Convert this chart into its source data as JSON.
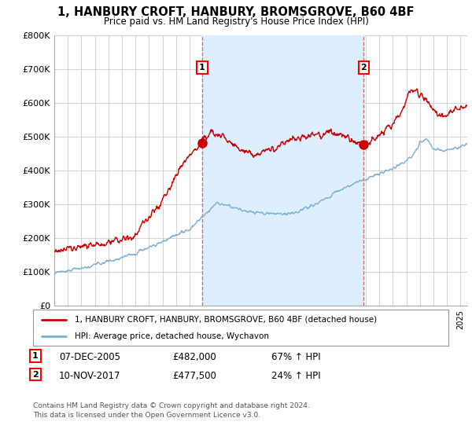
{
  "title": "1, HANBURY CROFT, HANBURY, BROMSGROVE, B60 4BF",
  "subtitle": "Price paid vs. HM Land Registry's House Price Index (HPI)",
  "ylabel_ticks": [
    "£0",
    "£100K",
    "£200K",
    "£300K",
    "£400K",
    "£500K",
    "£600K",
    "£700K",
    "£800K"
  ],
  "ytick_values": [
    0,
    100000,
    200000,
    300000,
    400000,
    500000,
    600000,
    700000,
    800000
  ],
  "ylim": [
    0,
    800000
  ],
  "xlim_start": 1995,
  "xlim_end": 2025.5,
  "sale1": {
    "date": 2005.92,
    "price": 482000,
    "label": "1",
    "pct": "67% ↑ HPI",
    "date_str": "07-DEC-2005"
  },
  "sale2": {
    "date": 2017.86,
    "price": 477500,
    "label": "2",
    "pct": "24% ↑ HPI",
    "date_str": "10-NOV-2017"
  },
  "legend_line1": "1, HANBURY CROFT, HANBURY, BROMSGROVE, B60 4BF (detached house)",
  "legend_line2": "HPI: Average price, detached house, Wychavon",
  "footer": "Contains HM Land Registry data © Crown copyright and database right 2024.\nThis data is licensed under the Open Government Licence v3.0.",
  "line_color_red": "#cc0000",
  "line_color_blue": "#7bafd4",
  "shade_color": "#ddeeff",
  "vline_color": "#cc6666",
  "bg_color": "#ffffff",
  "grid_color": "#cccccc"
}
